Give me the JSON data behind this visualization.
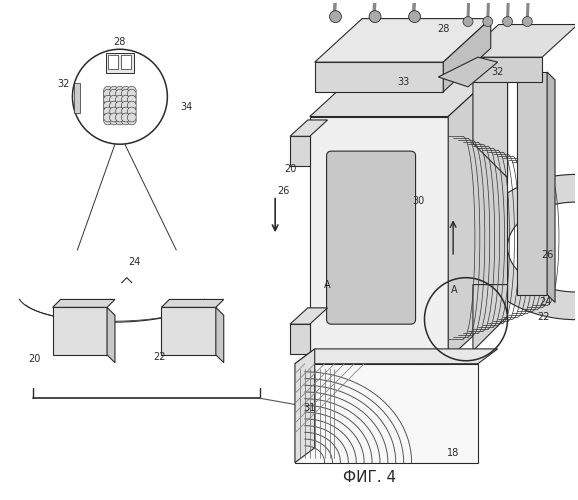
{
  "title": "ФИГ. 4",
  "bg_color": "#ffffff",
  "lc": "#2a2a2a",
  "lw": 0.8,
  "fig_w": 5.78,
  "fig_h": 5.0,
  "dpi": 100
}
